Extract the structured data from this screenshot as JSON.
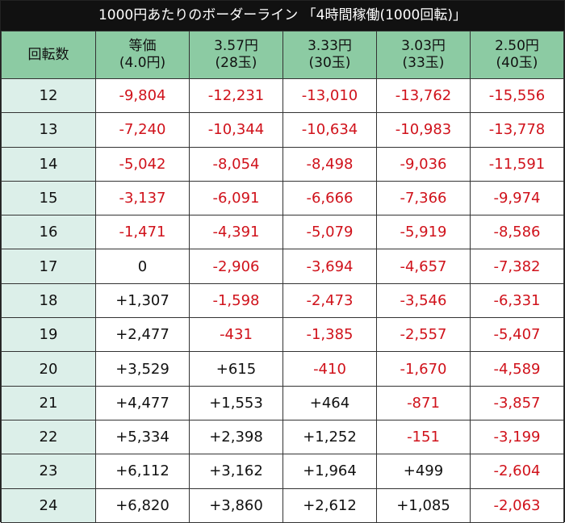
{
  "title": "1000円あたりのボーダーライン 「4時間稼働(1000回転)」",
  "table": {
    "headers": [
      [
        "回転数"
      ],
      [
        "等価",
        "(4.0円)"
      ],
      [
        "3.57円",
        "(28玉)"
      ],
      [
        "3.33円",
        "(30玉)"
      ],
      [
        "3.03円",
        "(33玉)"
      ],
      [
        "2.50円",
        "(40玉)"
      ]
    ],
    "rows": [
      [
        "12",
        "-9,804",
        "-12,231",
        "-13,010",
        "-13,762",
        "-15,556"
      ],
      [
        "13",
        "-7,240",
        "-10,344",
        "-10,634",
        "-10,983",
        "-13,778"
      ],
      [
        "14",
        "-5,042",
        "-8,054",
        "-8,498",
        "-9,036",
        "-11,591"
      ],
      [
        "15",
        "-3,137",
        "-6,091",
        "-6,666",
        "-7,366",
        "-9,974"
      ],
      [
        "16",
        "-1,471",
        "-4,391",
        "-5,079",
        "-5,919",
        "-8,586"
      ],
      [
        "17",
        "0",
        "-2,906",
        "-3,694",
        "-4,657",
        "-7,382"
      ],
      [
        "18",
        "+1,307",
        "-1,598",
        "-2,473",
        "-3,546",
        "-6,331"
      ],
      [
        "19",
        "+2,477",
        "-431",
        "-1,385",
        "-2,557",
        "-5,407"
      ],
      [
        "20",
        "+3,529",
        "+615",
        "-410",
        "-1,670",
        "-4,589"
      ],
      [
        "21",
        "+4,477",
        "+1,553",
        "+464",
        "-871",
        "-3,857"
      ],
      [
        "22",
        "+5,334",
        "+2,398",
        "+1,252",
        "-151",
        "-3,199"
      ],
      [
        "23",
        "+6,112",
        "+3,162",
        "+1,964",
        "+499",
        "-2,604"
      ],
      [
        "24",
        "+6,820",
        "+3,860",
        "+2,612",
        "+1,085",
        "-2,063"
      ]
    ]
  }
}
